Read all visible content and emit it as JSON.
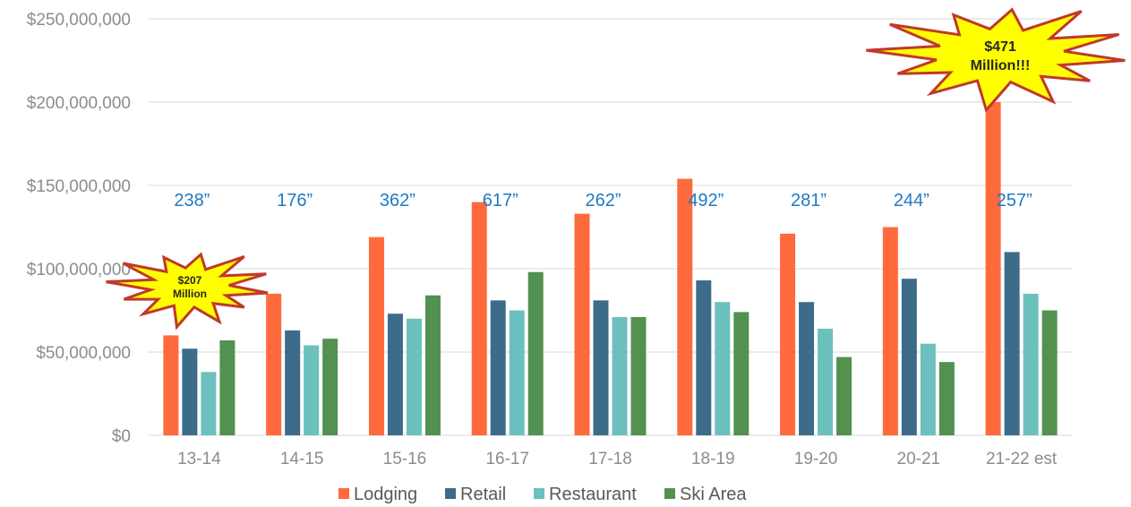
{
  "chart_data": {
    "type": "bar",
    "categories": [
      "13-14",
      "14-15",
      "15-16",
      "16-17",
      "17-18",
      "18-19",
      "19-20",
      "20-21",
      "21-22 est"
    ],
    "series": [
      {
        "name": "Lodging",
        "color": "#ff6a3d",
        "values": [
          60000000,
          85000000,
          119000000,
          140000000,
          133000000,
          154000000,
          121000000,
          125000000,
          200000000
        ]
      },
      {
        "name": "Retail",
        "color": "#3d6b8a",
        "values": [
          52000000,
          63000000,
          73000000,
          81000000,
          81000000,
          93000000,
          80000000,
          94000000,
          110000000
        ]
      },
      {
        "name": "Restaurant",
        "color": "#6cc0be",
        "values": [
          38000000,
          54000000,
          70000000,
          75000000,
          71000000,
          80000000,
          64000000,
          55000000,
          85000000
        ]
      },
      {
        "name": "Ski Area",
        "color": "#539150",
        "values": [
          57000000,
          58000000,
          84000000,
          98000000,
          71000000,
          74000000,
          47000000,
          44000000,
          75000000
        ]
      }
    ],
    "ylim": [
      0,
      250000000
    ],
    "y_ticks": [
      "$0",
      "$50,000,000",
      "$100,000,000",
      "$150,000,000",
      "$200,000,000",
      "$250,000,000"
    ],
    "y_tick_values": [
      0,
      50000000,
      100000000,
      150000000,
      200000000,
      250000000
    ],
    "snowfall_labels": [
      "238”",
      "176”",
      "362”",
      "617”",
      "262”",
      "492”",
      "281”",
      "244”",
      "257”"
    ],
    "annotations": [
      {
        "text_line1": "$207",
        "text_line2": "Million",
        "category": "13-14"
      },
      {
        "text_line1": "$471",
        "text_line2": "Million!!!",
        "category": "21-22 est"
      }
    ],
    "legend_position": "bottom",
    "grid": true,
    "gridline_color": "#d9d9d9",
    "burst_fill": "#ffff00",
    "burst_stroke": "#c0392b",
    "snow_label_color": "#1f7ac2"
  }
}
